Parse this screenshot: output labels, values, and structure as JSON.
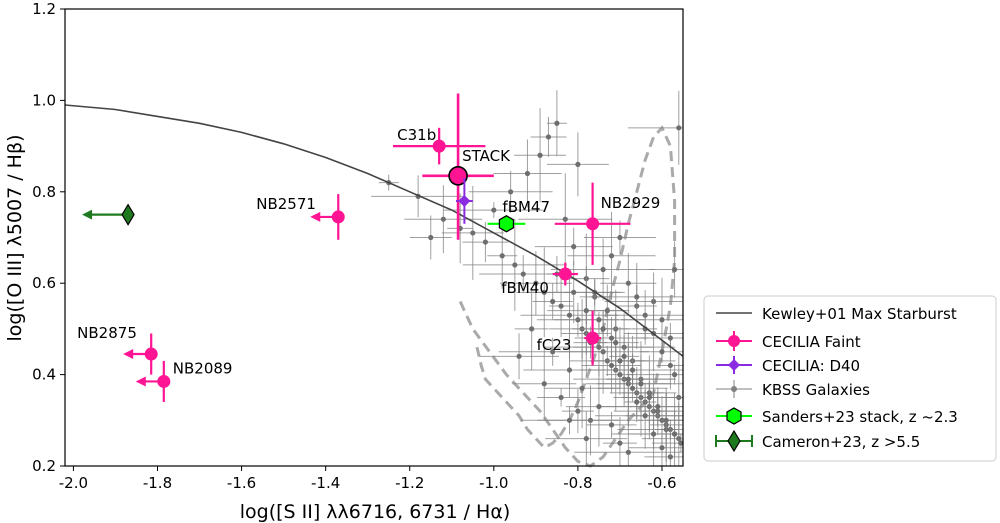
{
  "chart_data": {
    "type": "scatter",
    "title": "",
    "xlabel": "log([S II] λλ6716, 6731 / Hα)",
    "ylabel": "log([O III] λ5007 / Hβ)",
    "xlim": [
      -2.02,
      -0.55
    ],
    "ylim": [
      0.2,
      1.2
    ],
    "xticks": [
      -2.0,
      -1.8,
      -1.6,
      -1.4,
      -1.2,
      -1.0,
      -0.8,
      -0.6
    ],
    "xtick_labels": [
      "-2.0",
      "-1.8",
      "-1.6",
      "-1.4",
      "-1.2",
      "-1.0",
      "-0.8",
      "-0.6"
    ],
    "yticks": [
      0.2,
      0.4,
      0.6,
      0.8,
      1.0,
      1.2
    ],
    "ytick_labels": [
      "0.2",
      "0.4",
      "0.6",
      "0.8",
      "1.0",
      "1.2"
    ],
    "legend_position": "outside-right",
    "kewley_curve": {
      "name": "Kewley+01 Max Starburst",
      "x": [
        -2.02,
        -1.9,
        -1.8,
        -1.7,
        -1.6,
        -1.5,
        -1.4,
        -1.3,
        -1.2,
        -1.1,
        -1.0,
        -0.9,
        -0.8,
        -0.7,
        -0.6,
        -0.55
      ],
      "y": [
        0.99,
        0.98,
        0.965,
        0.95,
        0.93,
        0.905,
        0.875,
        0.84,
        0.8,
        0.76,
        0.71,
        0.66,
        0.605,
        0.545,
        0.475,
        0.44
      ]
    },
    "cecilia_faint": [
      {
        "label": "C31b",
        "x": -1.13,
        "y": 0.9,
        "xerr": 0.11,
        "yerr": 0.04
      },
      {
        "label": "NB2571",
        "x": -1.37,
        "y": 0.745,
        "upper_limit": true,
        "yerr": 0.05
      },
      {
        "label": "NB2929",
        "x": -0.765,
        "y": 0.73,
        "xerr": 0.09,
        "yerr": 0.09
      },
      {
        "label": "fBM40",
        "x": -0.83,
        "y": 0.62,
        "xerr": 0.03,
        "yerr": 0.025
      },
      {
        "label": "fC23",
        "x": -0.765,
        "y": 0.48,
        "xerr": 0.02,
        "yerr": 0.06
      },
      {
        "label": "NB2875",
        "x": -1.815,
        "y": 0.445,
        "upper_limit": true,
        "yerr": 0.045
      },
      {
        "label": "NB2089",
        "x": -1.785,
        "y": 0.385,
        "upper_limit": true,
        "yerr": 0.045
      }
    ],
    "stack": {
      "label": "STACK",
      "x": -1.085,
      "y": 0.835,
      "xerr": 0.085,
      "yerr_plus": 0.18,
      "yerr_minus": 0.14
    },
    "cecilia_d40": {
      "x": -1.07,
      "y": 0.78,
      "xerr": 0.02,
      "yerr": 0.05
    },
    "sanders_stack": {
      "label": "fBM47",
      "x": -0.97,
      "y": 0.73,
      "xerr": 0.045,
      "yerr": 0.008
    },
    "cameron": {
      "x": -1.87,
      "y": 0.75,
      "upper_limit": true
    },
    "kbss_galaxies": {
      "x": [
        -1.25,
        -1.18,
        -1.12,
        -1.05,
        -1.02,
        -0.98,
        -0.95,
        -0.93,
        -0.9,
        -0.88,
        -0.86,
        -0.84,
        -0.82,
        -0.8,
        -0.79,
        -0.78,
        -0.77,
        -0.75,
        -0.74,
        -0.73,
        -0.72,
        -0.71,
        -0.7,
        -0.69,
        -0.68,
        -0.67,
        -0.66,
        -0.65,
        -0.64,
        -0.63,
        -0.62,
        -0.61,
        -0.6,
        -0.59,
        -0.58,
        -0.57,
        -0.56,
        -0.555,
        -1.15,
        -1.08,
        -1.0,
        -0.96,
        -0.92,
        -0.89,
        -0.87,
        -0.85,
        -0.83,
        -0.81,
        -0.8,
        -0.78,
        -0.76,
        -0.74,
        -0.72,
        -0.7,
        -0.68,
        -0.66,
        -0.64,
        -0.62,
        -0.6,
        -0.58,
        -0.57,
        -0.91,
        -0.86,
        -0.82,
        -0.79,
        -0.76,
        -0.73,
        -0.71,
        -0.69,
        -0.67,
        -0.65,
        -0.63,
        -0.61,
        -0.59,
        -0.57,
        -0.94,
        -0.88,
        -0.84,
        -0.8,
        -0.77,
        -0.75,
        -0.72,
        -0.7,
        -0.68,
        -0.66,
        -0.64,
        -0.62,
        -0.6,
        -0.58,
        -0.56,
        -0.85,
        -0.81,
        -0.78,
        -0.74,
        -0.71,
        -0.69,
        -0.67,
        -0.65,
        -0.63,
        -0.61,
        -0.59,
        -0.57,
        -0.82,
        -0.78,
        -0.75,
        -0.72,
        -0.7,
        -0.68,
        -0.66,
        -0.64,
        -0.62,
        -0.6,
        -0.58,
        -0.56
      ],
      "y": [
        0.82,
        0.79,
        0.74,
        0.71,
        0.69,
        0.66,
        0.64,
        0.62,
        0.6,
        0.58,
        0.56,
        0.55,
        0.53,
        0.52,
        0.5,
        0.49,
        0.47,
        0.46,
        0.45,
        0.43,
        0.42,
        0.41,
        0.4,
        0.39,
        0.38,
        0.37,
        0.36,
        0.35,
        0.34,
        0.33,
        0.32,
        0.31,
        0.3,
        0.29,
        0.28,
        0.27,
        0.26,
        0.25,
        0.7,
        0.72,
        0.76,
        0.8,
        0.84,
        0.88,
        0.92,
        0.95,
        0.74,
        0.68,
        0.86,
        0.61,
        0.57,
        0.63,
        0.66,
        0.7,
        0.6,
        0.55,
        0.5,
        0.56,
        0.52,
        0.48,
        0.63,
        0.5,
        0.45,
        0.41,
        0.37,
        0.58,
        0.54,
        0.5,
        0.46,
        0.43,
        0.39,
        0.36,
        0.32,
        0.28,
        0.4,
        0.44,
        0.38,
        0.35,
        0.32,
        0.3,
        0.52,
        0.48,
        0.43,
        0.39,
        0.34,
        0.31,
        0.27,
        0.24,
        0.22,
        0.35,
        0.62,
        0.58,
        0.54,
        0.5,
        0.47,
        0.44,
        0.41,
        0.38,
        0.35,
        0.33,
        0.3,
        0.27,
        0.3,
        0.26,
        0.33,
        0.29,
        0.25,
        0.23,
        0.57,
        0.53,
        0.49,
        0.45,
        0.42,
        0.94
      ]
    },
    "kbss_contour": {
      "x": [
        -1.08,
        -1.05,
        -1.01,
        -0.97,
        -0.93,
        -0.89,
        -0.86,
        -0.83,
        -0.8,
        -0.77,
        -0.74,
        -0.71,
        -0.68,
        -0.65,
        -0.62,
        -0.6,
        -0.58,
        -0.57,
        -0.57,
        -0.58,
        -0.6,
        -0.62,
        -0.64,
        -0.66,
        -0.68,
        -0.7,
        -0.72,
        -0.74,
        -0.76,
        -0.78,
        -0.8,
        -0.82,
        -0.84,
        -0.86,
        -0.88,
        -0.9,
        -0.92,
        -0.94,
        -0.96,
        -0.98,
        -1.0,
        -1.02,
        -1.03,
        -1.04
      ],
      "y": [
        0.56,
        0.5,
        0.45,
        0.4,
        0.36,
        0.32,
        0.28,
        0.24,
        0.21,
        0.2,
        0.22,
        0.26,
        0.3,
        0.33,
        0.36,
        0.45,
        0.55,
        0.65,
        0.78,
        0.9,
        0.94,
        0.92,
        0.87,
        0.8,
        0.73,
        0.65,
        0.58,
        0.5,
        0.44,
        0.39,
        0.34,
        0.3,
        0.27,
        0.25,
        0.24,
        0.26,
        0.28,
        0.31,
        0.33,
        0.35,
        0.37,
        0.39,
        0.42,
        0.46
      ]
    },
    "legend": [
      "Kewley+01 Max Starburst",
      "CECILIA Faint",
      "CECILIA: D40",
      "KBSS Galaxies",
      "Sanders+23 stack, z ~2.3",
      "Cameron+23, z >5.5"
    ],
    "colors": {
      "faint": "#ff1493",
      "d40": "#8a2be2",
      "kbss": "#808080",
      "sanders": "#00ff00",
      "cameron": "#1f7a1f",
      "kewley": "#444444",
      "contour": "#aaaaaa"
    }
  }
}
